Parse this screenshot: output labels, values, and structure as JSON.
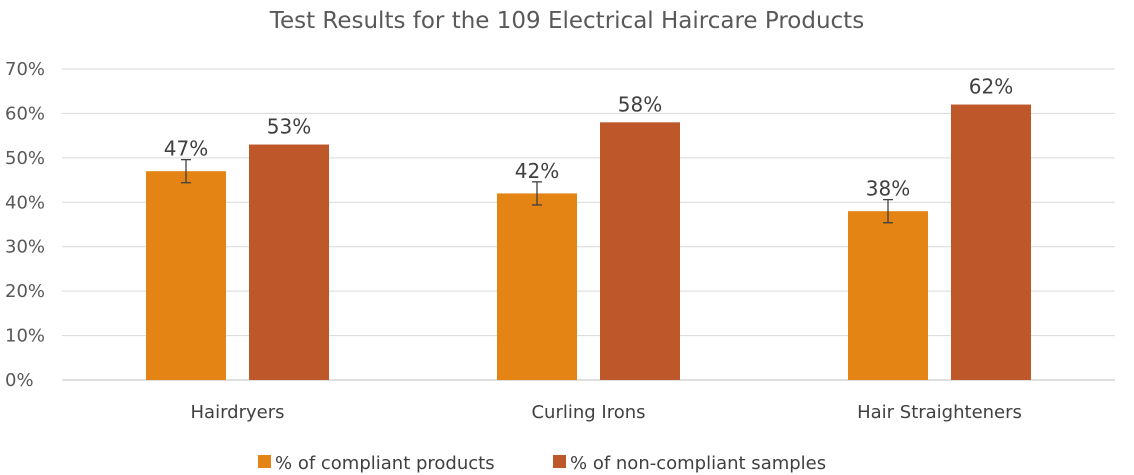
{
  "chart_data": {
    "type": "bar",
    "title": "Test Results for the 109 Electrical Haircare Products",
    "categories": [
      "Hairdryers",
      "Curling Irons",
      "Hair Straighteners"
    ],
    "series": [
      {
        "name": "% of compliant products",
        "values": [
          47,
          42,
          38
        ],
        "labels": [
          "47%",
          "42%",
          "38%"
        ],
        "color": "#E38414",
        "error": [
          2.6,
          2.6,
          2.6
        ]
      },
      {
        "name": "% of non-compliant samples",
        "values": [
          53,
          58,
          62
        ],
        "labels": [
          "53%",
          "58%",
          "62%"
        ],
        "color": "#BE582B"
      }
    ],
    "ylim": [
      0,
      70
    ],
    "yticks": [
      "0%",
      "10%",
      "20%",
      "30%",
      "40%",
      "50%",
      "60%",
      "70%"
    ],
    "grid": true,
    "legend": "bottom"
  }
}
